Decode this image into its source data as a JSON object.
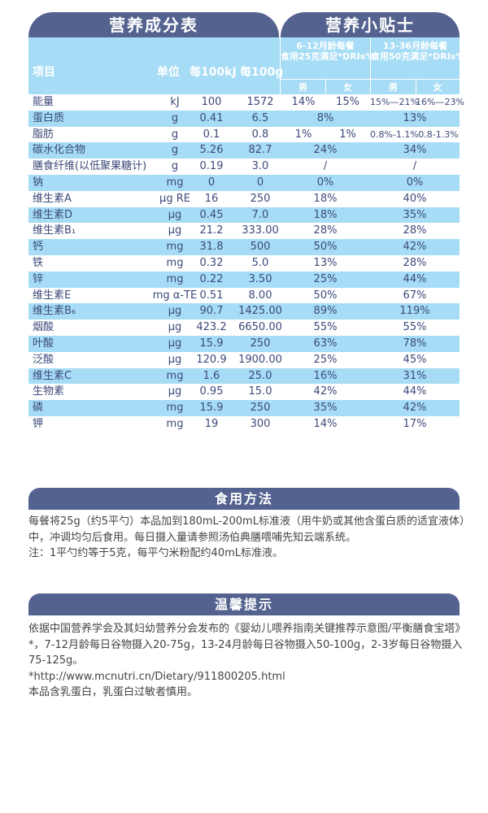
{
  "table_title": "营养成分表",
  "tips_title": "营养小贴士",
  "headers": {
    "item": "项目",
    "unit": "单位",
    "per100kj": "每100kJ",
    "per100g": "每100g",
    "group1_l1": "6-12月龄每餐",
    "group1_l2": "食用25克满足*DRIs%",
    "group2_l1": "13-36月龄每餐",
    "group2_l2": "食用50克满足*DRIs%",
    "male": "男",
    "female": "女"
  },
  "rows": [
    [
      "能量",
      "kJ",
      "100",
      "1572",
      [
        "14%",
        "15%"
      ],
      [
        "15%—21%",
        "16%—23%"
      ]
    ],
    [
      "蛋白质",
      "g",
      "0.41",
      "6.5",
      [
        "8%"
      ],
      [
        "13%"
      ]
    ],
    [
      "脂肪",
      "g",
      "0.1",
      "0.8",
      [
        "1%",
        "1%"
      ],
      [
        "0.8%-1.1%",
        "0.8-1.3%"
      ]
    ],
    [
      "碳水化合物",
      "g",
      "5.26",
      "82.7",
      [
        "24%"
      ],
      [
        "34%"
      ]
    ],
    [
      "膳食纤维(以低聚果糖计)",
      "g",
      "0.19",
      "3.0",
      [
        "/"
      ],
      [
        "/"
      ]
    ],
    [
      "钠",
      "mg",
      "0",
      "0",
      [
        "0%"
      ],
      [
        "0%"
      ]
    ],
    [
      "维生素A",
      "μg RE",
      "16",
      "250",
      [
        "18%"
      ],
      [
        "40%"
      ]
    ],
    [
      "维生素D",
      "μg",
      "0.45",
      "7.0",
      [
        "18%"
      ],
      [
        "35%"
      ]
    ],
    [
      "维生素B₁",
      "μg",
      "21.2",
      "333.00",
      [
        "28%"
      ],
      [
        "28%"
      ]
    ],
    [
      "钙",
      "mg",
      "31.8",
      "500",
      [
        "50%"
      ],
      [
        "42%"
      ]
    ],
    [
      "铁",
      "mg",
      "0.32",
      "5.0",
      [
        "13%"
      ],
      [
        "28%"
      ]
    ],
    [
      "锌",
      "mg",
      "0.22",
      "3.50",
      [
        "25%"
      ],
      [
        "44%"
      ]
    ],
    [
      "维生素E",
      "mg α-TE",
      "0.51",
      "8.00",
      [
        "50%"
      ],
      [
        "67%"
      ]
    ],
    [
      "维生素B₆",
      "μg",
      "90.7",
      "1425.00",
      [
        "89%"
      ],
      [
        "119%"
      ]
    ],
    [
      "烟酸",
      "μg",
      "423.2",
      "6650.00",
      [
        "55%"
      ],
      [
        "55%"
      ]
    ],
    [
      "叶酸",
      "μg",
      "15.9",
      "250",
      [
        "63%"
      ],
      [
        "78%"
      ]
    ],
    [
      "泛酸",
      "μg",
      "120.9",
      "1900.00",
      [
        "25%"
      ],
      [
        "45%"
      ]
    ],
    [
      "维生素C",
      "mg",
      "1.6",
      "25.0",
      [
        "16%"
      ],
      [
        "31%"
      ]
    ],
    [
      "生物素",
      "μg",
      "0.95",
      "15.0",
      [
        "42%"
      ],
      [
        "44%"
      ]
    ],
    [
      "磷",
      "mg",
      "15.9",
      "250",
      [
        "35%"
      ],
      [
        "42%"
      ]
    ],
    [
      "钾",
      "mg",
      "19",
      "300",
      [
        "14%"
      ],
      [
        "17%"
      ]
    ]
  ],
  "usage": {
    "title": "食用方法",
    "lines": [
      "每餐将25g（约5平勺）本品加到180mL-200mL标准液（用牛奶或其他含蛋白质的适宜液体）中，冲调均匀后食用。每日摄入量请参照汤伯典膳喂哺先知云端系统。",
      "注：1平勺约等于5克，每平勺米粉配约40mL标准液。"
    ]
  },
  "notice": {
    "title": "温馨提示",
    "lines": [
      "依据中国营养学会及其妇幼营养分会发布的《婴幼儿喂养指南关键推荐示意图/平衡膳食宝塔》*，7-12月龄每日谷物摄入20-75g，13-24月龄每日谷物摄入50-100g，2-3岁每日谷物摄入75-125g。",
      "*http://www.mcnutri.cn/Dietary/911800205.html",
      "本品含乳蛋白，乳蛋白过敏者慎用。"
    ]
  }
}
